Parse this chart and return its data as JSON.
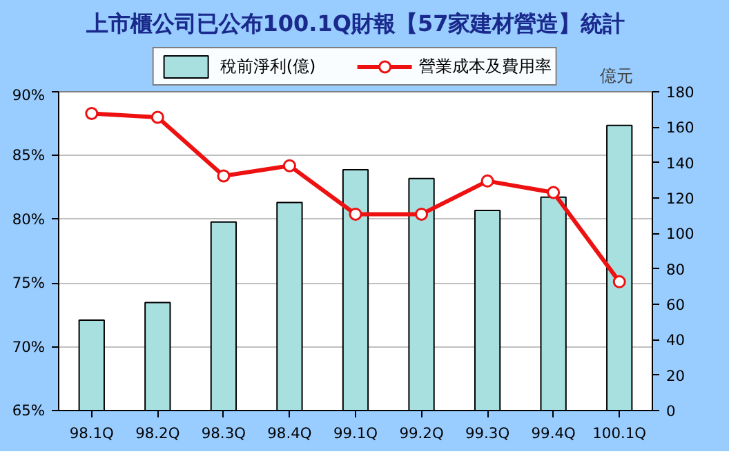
{
  "chart_data": {
    "type": "bar",
    "title": "上市櫃公司已公布100.1Q財報【57家建材營造】統計",
    "categories": [
      "98.1Q",
      "98.2Q",
      "98.3Q",
      "98.4Q",
      "99.1Q",
      "99.2Q",
      "99.3Q",
      "99.4Q",
      "100.1Q"
    ],
    "series": [
      {
        "name": "稅前淨利(億)",
        "axis": "y2",
        "color": "#a8e0e0",
        "values": [
          51,
          61,
          106.5,
          117.5,
          136,
          131,
          113,
          120.5,
          161
        ]
      },
      {
        "name": "營業成本及費用率",
        "type": "line",
        "color": "#ee1111",
        "marker": "circle",
        "values": [
          88.3,
          88.0,
          83.4,
          84.2,
          80.4,
          80.4,
          83.0,
          82.1,
          75.1
        ]
      }
    ],
    "ylim": [
      65,
      90
    ],
    "yticks": [
      {
        "value": 65,
        "label": "65%"
      },
      {
        "value": 70,
        "label": "70%"
      },
      {
        "value": 75,
        "label": "75%"
      },
      {
        "value": 80,
        "label": "80%"
      },
      {
        "value": 85,
        "label": "85%"
      },
      {
        "value": 90,
        "label": "90%"
      }
    ],
    "y2lim": [
      0,
      180
    ],
    "y2ticks": [
      0,
      20,
      40,
      60,
      80,
      100,
      120,
      140,
      160,
      180
    ],
    "y2label": "億元",
    "grid": "y",
    "legend": "top"
  }
}
